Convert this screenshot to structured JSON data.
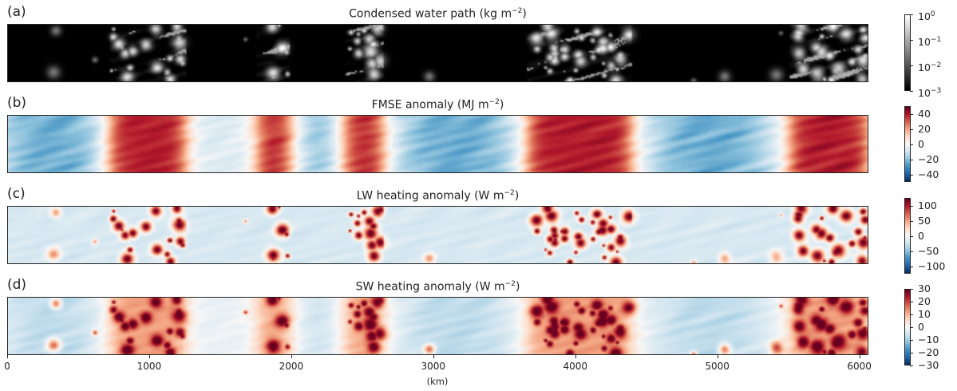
{
  "chart_data": {
    "type": "heatmap",
    "xlabel": "(km)",
    "xlim": [
      0,
      6064
    ],
    "xticks": [
      "0",
      "1000",
      "2000",
      "3000",
      "4000",
      "5000",
      "6000"
    ],
    "moist_regions_km": [
      [
        700,
        1250
      ],
      [
        1750,
        2000
      ],
      [
        2350,
        2650
      ],
      [
        3650,
        4400
      ],
      [
        5500,
        6064
      ]
    ],
    "dry_regions_km": [
      [
        0,
        600
      ],
      [
        2100,
        2300
      ],
      [
        2800,
        3500
      ],
      [
        4600,
        5300
      ]
    ],
    "panels": [
      {
        "label": "(a)",
        "title": "Condensed water path (kg m",
        "title_exp": "−2",
        "title_end": ")",
        "colormap": "gray",
        "scale": "log",
        "vmin": 0.001,
        "vmax": 1,
        "cbar_ticks": [
          {
            "b": "10",
            "e": "0",
            "v": 0
          },
          {
            "b": "10",
            "e": "−1",
            "v": -1
          },
          {
            "b": "10",
            "e": "−2",
            "v": -2
          },
          {
            "b": "10",
            "e": "−3",
            "v": -3
          }
        ]
      },
      {
        "label": "(b)",
        "title": "FMSE anomaly (MJ m",
        "title_exp": "−2",
        "title_end": ")",
        "colormap": "RdBu_r",
        "vmin": -50,
        "vmax": 50,
        "cbar_ticks": [
          {
            "b": "40",
            "v": 40
          },
          {
            "b": "20",
            "v": 20
          },
          {
            "b": "0",
            "v": 0
          },
          {
            "b": "−20",
            "v": -20
          },
          {
            "b": "−40",
            "v": -40
          }
        ]
      },
      {
        "label": "(c)",
        "title": "LW heating anomaly (W m",
        "title_exp": "−2",
        "title_end": ")",
        "colormap": "RdBu_r",
        "vmin": -125,
        "vmax": 125,
        "cbar_ticks": [
          {
            "b": "100",
            "v": 100
          },
          {
            "b": "50",
            "v": 50
          },
          {
            "b": "0",
            "v": 0
          },
          {
            "b": "−50",
            "v": -50
          },
          {
            "b": "−100",
            "v": -100
          }
        ]
      },
      {
        "label": "(d)",
        "title": "SW heating anomaly (W m",
        "title_exp": "−2",
        "title_end": ")",
        "colormap": "RdBu_r",
        "vmin": -30,
        "vmax": 30,
        "cbar_ticks": [
          {
            "b": "30",
            "v": 30
          },
          {
            "b": "20",
            "v": 20
          },
          {
            "b": "10",
            "v": 10
          },
          {
            "b": "0",
            "v": 0
          },
          {
            "b": "−10",
            "v": -10
          },
          {
            "b": "−20",
            "v": -20
          },
          {
            "b": "−30",
            "v": -30
          }
        ]
      }
    ]
  }
}
